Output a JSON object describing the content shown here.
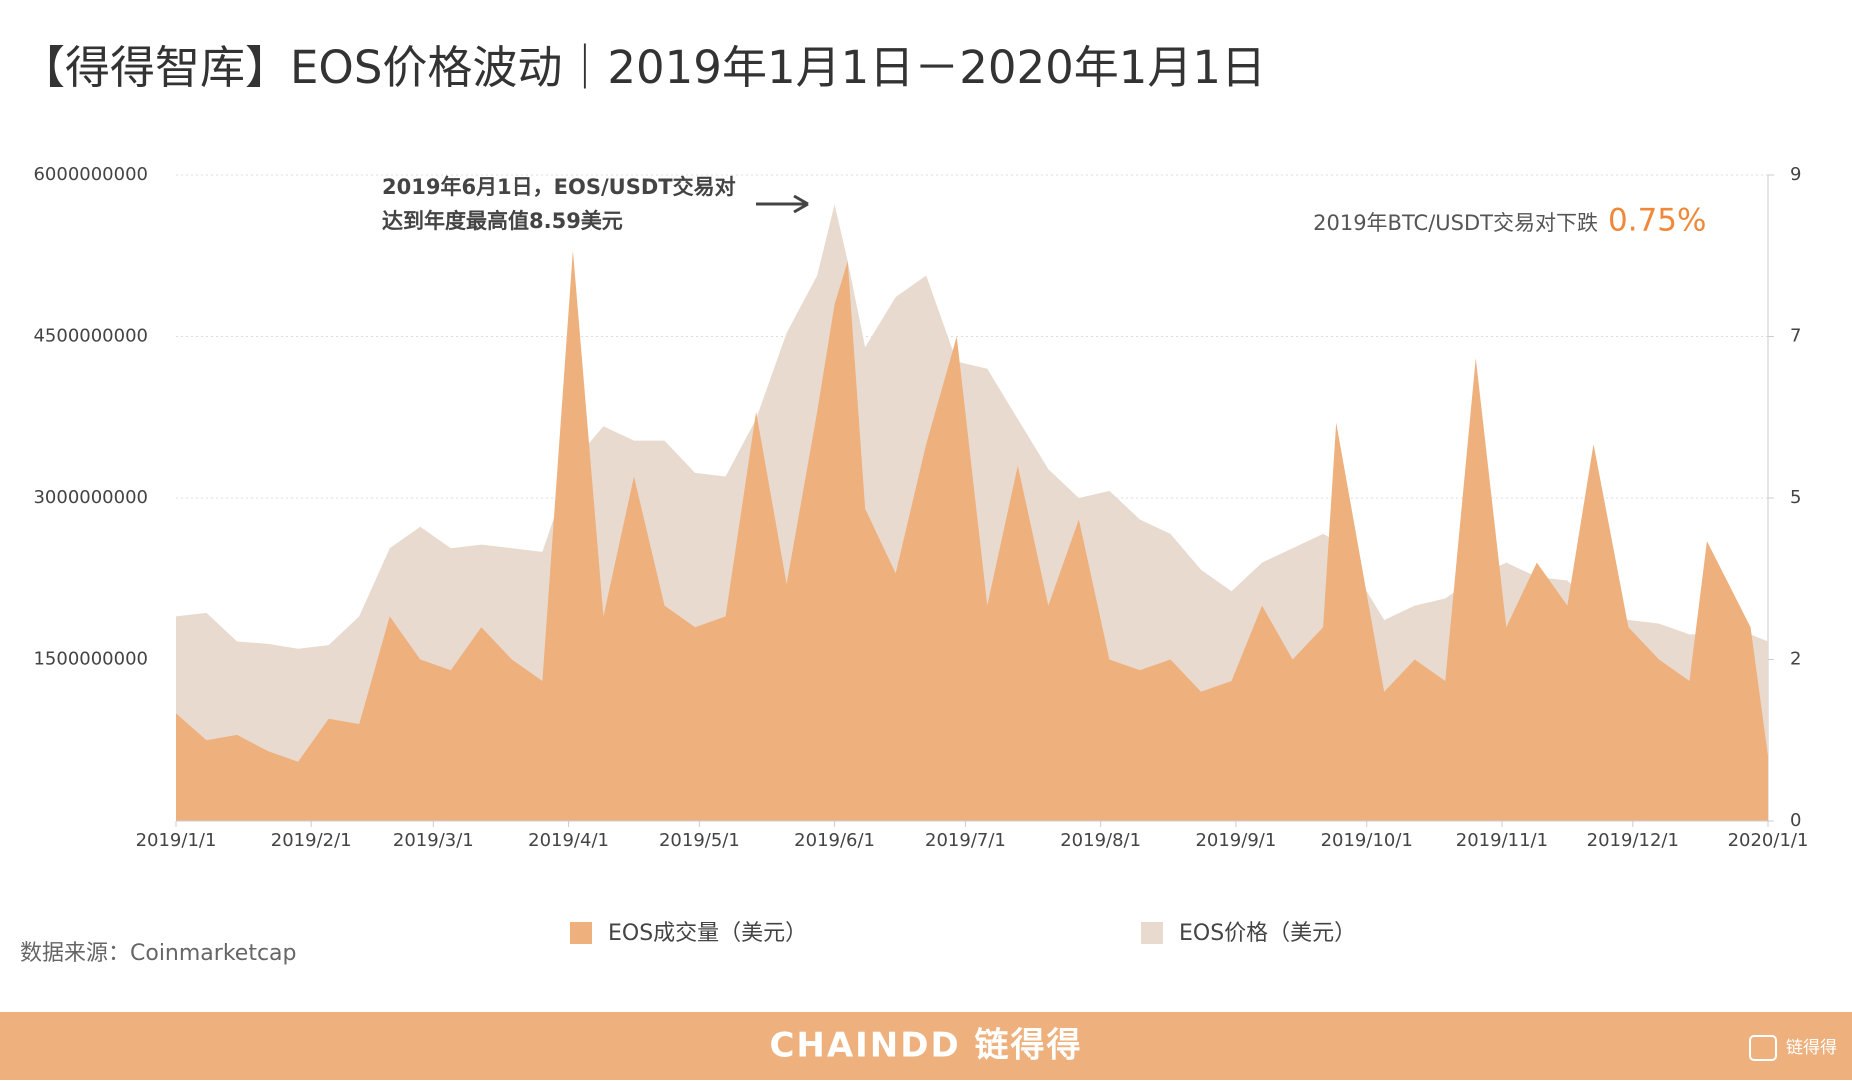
{
  "chart_data": {
    "type": "area",
    "title": "【得得智库】EOS价格波动｜2019年1月1日－2020年1月1日",
    "x": [
      "2019/1/1",
      "2019/1/8",
      "2019/1/15",
      "2019/1/22",
      "2019/1/29",
      "2019/2/5",
      "2019/2/12",
      "2019/2/19",
      "2019/2/26",
      "2019/3/5",
      "2019/3/12",
      "2019/3/19",
      "2019/3/26",
      "2019/4/2",
      "2019/4/9",
      "2019/4/16",
      "2019/4/23",
      "2019/4/30",
      "2019/5/7",
      "2019/5/14",
      "2019/5/21",
      "2019/5/28",
      "2019/6/1",
      "2019/6/4",
      "2019/6/8",
      "2019/6/15",
      "2019/6/22",
      "2019/6/29",
      "2019/7/6",
      "2019/7/13",
      "2019/7/20",
      "2019/7/27",
      "2019/8/3",
      "2019/8/10",
      "2019/8/17",
      "2019/8/24",
      "2019/8/31",
      "2019/9/7",
      "2019/9/14",
      "2019/9/21",
      "2019/9/24",
      "2019/10/5",
      "2019/10/12",
      "2019/10/19",
      "2019/10/26",
      "2019/11/2",
      "2019/11/9",
      "2019/11/16",
      "2019/11/22",
      "2019/11/30",
      "2019/12/7",
      "2019/12/14",
      "2019/12/18",
      "2019/12/28",
      "2020/1/1"
    ],
    "series": [
      {
        "name": "EOS成交量（美元）",
        "color": "#eeb07c",
        "values": [
          1000000000,
          750000000,
          800000000,
          650000000,
          550000000,
          950000000,
          900000000,
          1900000000,
          1500000000,
          1400000000,
          1800000000,
          1500000000,
          1300000000,
          5300000000,
          1900000000,
          3200000000,
          2000000000,
          1800000000,
          1900000000,
          3800000000,
          2200000000,
          3800000000,
          4800000000,
          5200000000,
          2900000000,
          2300000000,
          3500000000,
          4500000000,
          2000000000,
          3300000000,
          2000000000,
          2800000000,
          1500000000,
          1400000000,
          1500000000,
          1200000000,
          1300000000,
          2000000000,
          1500000000,
          1800000000,
          3700000000,
          1200000000,
          1500000000,
          1300000000,
          4300000000,
          1800000000,
          2400000000,
          2000000000,
          3500000000,
          1800000000,
          1500000000,
          1300000000,
          2600000000,
          1800000000,
          600000000
        ]
      },
      {
        "name": "EOS价格（美元）",
        "color": "#e8dace",
        "axis": "y2",
        "values": [
          2.85,
          2.9,
          2.5,
          2.47,
          2.4,
          2.45,
          2.85,
          3.8,
          4.1,
          3.8,
          3.85,
          3.8,
          3.75,
          5.0,
          5.5,
          5.3,
          5.3,
          4.85,
          4.8,
          5.6,
          6.8,
          7.6,
          8.59,
          7.8,
          6.6,
          7.3,
          7.6,
          6.4,
          6.3,
          5.6,
          4.9,
          4.5,
          4.6,
          4.2,
          4.0,
          3.5,
          3.2,
          3.6,
          3.8,
          4.0,
          3.9,
          2.8,
          3.0,
          3.1,
          3.4,
          3.6,
          3.4,
          3.35,
          3.0,
          2.8,
          2.75,
          2.6,
          2.6,
          2.6,
          2.5
        ]
      }
    ],
    "xlim": [
      "2019/1/1",
      "2020/1/1"
    ],
    "xticks": [
      "2019/1/1",
      "2019/2/1",
      "2019/3/1",
      "2019/4/1",
      "2019/5/1",
      "2019/6/1",
      "2019/7/1",
      "2019/8/1",
      "2019/9/1",
      "2019/10/1",
      "2019/11/1",
      "2019/12/1",
      "2020/1/1"
    ],
    "ylim": [
      0,
      6000000000
    ],
    "yticks": [
      1500000000,
      3000000000,
      4500000000,
      6000000000
    ],
    "y2lim": [
      0,
      9
    ],
    "y2ticks": [
      0,
      {
        "value": 2.25,
        "label": "2"
      },
      {
        "value": 4.5,
        "label": "5"
      },
      {
        "value": 6.75,
        "label": "7"
      },
      9
    ],
    "grid": true,
    "annotations": [
      {
        "lines": [
          "2019年6月1日，EOS/USDT交易对",
          "达到年度最高值8.59美元"
        ]
      },
      {
        "text": "2019年BTC/USDT交易对下跌",
        "highlight": "0.75%",
        "highlight_color": "#f0883a"
      }
    ]
  },
  "source": "数据来源：Coinmarketcap",
  "footer": {
    "brand": "CHAINDD 链得得",
    "logo": "链得得"
  }
}
